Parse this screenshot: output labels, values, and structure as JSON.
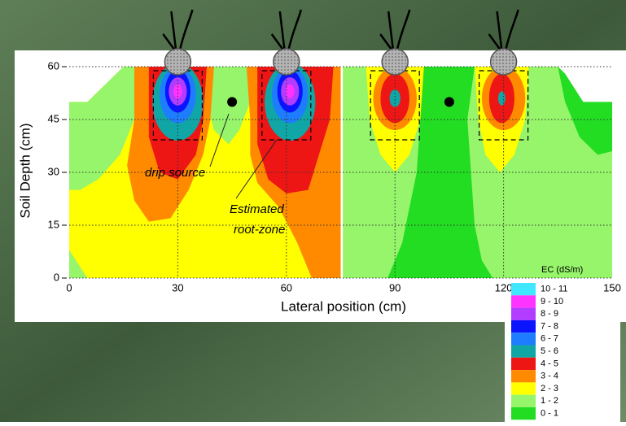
{
  "chart_data": {
    "type": "contour",
    "xlabel": "Lateral position (cm)",
    "ylabel": "Soil Depth (cm)",
    "xlim": [
      0,
      150
    ],
    "xticks": [
      0,
      30,
      60,
      90,
      120,
      150
    ],
    "ylim": [
      0,
      60
    ],
    "yticks": [
      0,
      15,
      30,
      45,
      60
    ],
    "grid": true,
    "legend_title": "EC (dS/m)",
    "levels": [
      {
        "label": "10 - 11",
        "color": "#3fe8ff"
      },
      {
        "label": "9 - 10",
        "color": "#ff33ff"
      },
      {
        "label": "8 - 9",
        "color": "#b23cff"
      },
      {
        "label": "7 - 8",
        "color": "#0a14ff"
      },
      {
        "label": "6 - 7",
        "color": "#1e7cff"
      },
      {
        "label": "5 - 6",
        "color": "#10a6a6"
      },
      {
        "label": "4 - 5",
        "color": "#ee1515"
      },
      {
        "label": "3 - 4",
        "color": "#ff8a00"
      },
      {
        "label": "2 - 3",
        "color": "#ffff00"
      },
      {
        "label": "1 - 2",
        "color": "#96f56a"
      },
      {
        "label": "0 - 1",
        "color": "#22dd22"
      }
    ],
    "emitters": [
      30,
      60,
      90,
      120
    ],
    "drip_sources": [
      {
        "x": 45,
        "y": 50
      },
      {
        "x": 105,
        "y": 50
      }
    ],
    "annotations": [
      "drip source",
      "Estimated",
      "root-zone"
    ]
  }
}
